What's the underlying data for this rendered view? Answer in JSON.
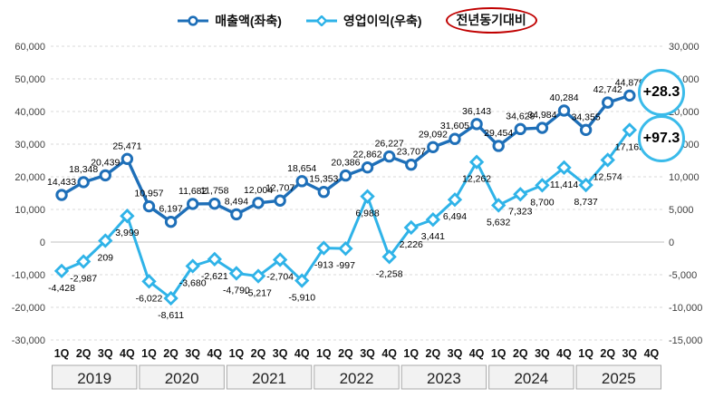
{
  "legend": {
    "series1": "매출액(좌축)",
    "series2": "영업이익(우축)",
    "highlight": "전년동기대비"
  },
  "badges": {
    "revenue_yoy": "+28.3",
    "profit_yoy": "+97.3"
  },
  "colors": {
    "revenue": "#1e6fb8",
    "profit": "#2fb3e8",
    "badge_ring": "#3abbea",
    "highlight_ring": "#c00000",
    "gridline": "#d9d9d9",
    "zeroline": "#c0c0c0",
    "year_box_fill": "#f2f2f2",
    "year_box_border": "#a9a9a9"
  },
  "chart_data": {
    "type": "line",
    "title": "",
    "legend_position": "top",
    "grid": true,
    "years": [
      "2019",
      "2020",
      "2021",
      "2022",
      "2023",
      "2024",
      "2025"
    ],
    "quarter_labels": [
      "1Q",
      "2Q",
      "3Q",
      "4Q"
    ],
    "left_axis": {
      "min": -30000,
      "max": 60000,
      "step": 10000,
      "ticks": [
        "60,000",
        "50,000",
        "40,000",
        "30,000",
        "20,000",
        "10,000",
        "0",
        "-10,000",
        "-20,000",
        "-30,000"
      ]
    },
    "right_axis": {
      "min": -15000,
      "max": 30000,
      "step": 5000,
      "ticks": [
        "30,000",
        "25,000",
        "20,000",
        "15,000",
        "10,000",
        "5,000",
        "0",
        "-5,000",
        "-10,000",
        "-15,000"
      ]
    },
    "series": [
      {
        "name": "매출액(좌축)",
        "axis": "left",
        "marker": "circle",
        "color": "#1e6fb8",
        "values": [
          14433,
          18348,
          20439,
          25471,
          10957,
          6197,
          11682,
          11758,
          8494,
          12004,
          12707,
          18654,
          15353,
          20386,
          22862,
          26227,
          23707,
          29092,
          31605,
          36143,
          29454,
          34629,
          34984,
          40284,
          34355,
          42742,
          44879,
          null
        ]
      },
      {
        "name": "영업이익(우축)",
        "axis": "right",
        "marker": "diamond",
        "color": "#2fb3e8",
        "values": [
          -4428,
          -2987,
          209,
          3999,
          -6022,
          -8611,
          -3680,
          -2621,
          -4790,
          -5217,
          -2704,
          -5910,
          -913,
          -997,
          6988,
          -2258,
          2226,
          3441,
          6494,
          12262,
          5632,
          7323,
          8700,
          11414,
          8737,
          12574,
          17165,
          null
        ]
      }
    ],
    "annotations": [
      {
        "text": "+28.3",
        "refers_to": "매출액 전년동기대비",
        "near_value": 44879
      },
      {
        "text": "+97.3",
        "refers_to": "영업이익 전년동기대비",
        "near_value": 17165
      }
    ]
  }
}
